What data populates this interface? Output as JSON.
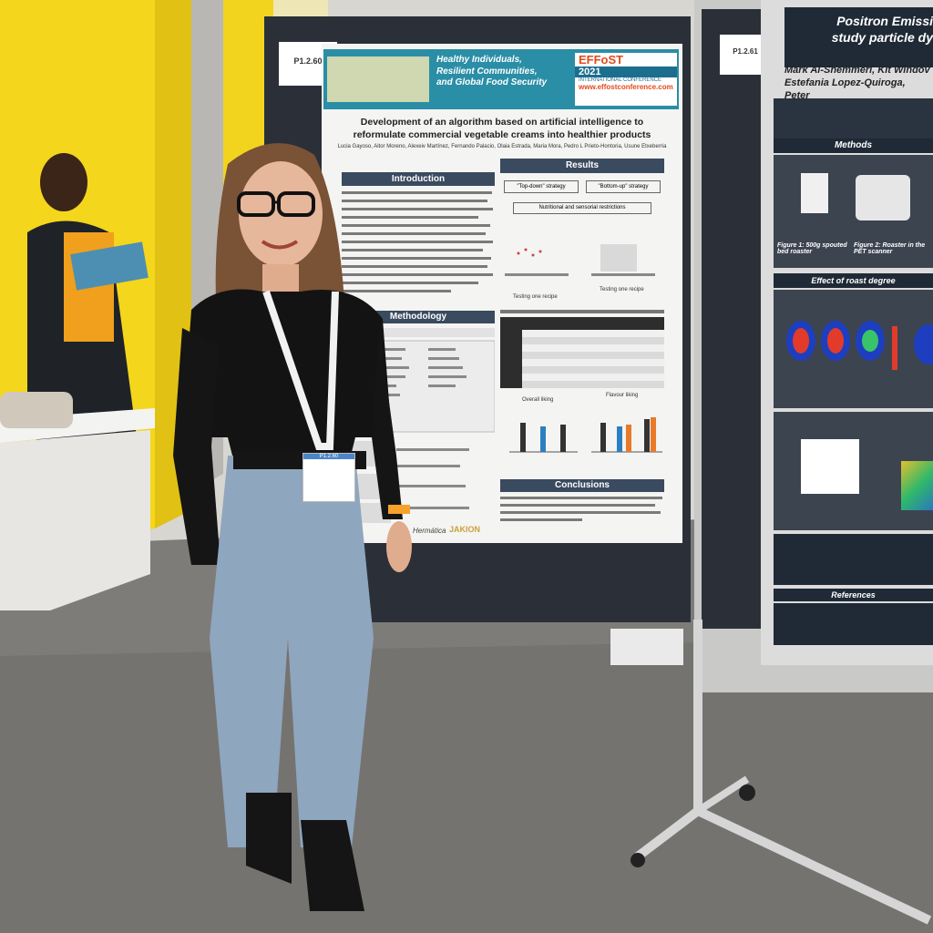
{
  "poster_main": {
    "board_number": "P1.2.60",
    "banner_lines": [
      "Healthy Individuals,",
      "Resilient Communities,",
      "and Global Food Security"
    ],
    "conf_brand": "EFFoST",
    "conf_year": "2021",
    "conf_sub": "INTERNATIONAL CONFERENCE",
    "conf_url": "www.effostconference.com",
    "title_line1": "Development of an algorithm based on artificial intelligence to",
    "title_line2": "reformulate commercial vegetable creams into healthier products",
    "authors": "Lucia Gayoso, Aitor Moreno, Alexeiv Martínez, Fernando Palacio, Olaia Estrada, Maria Mora, Pedro L Prieto-Hontoria, Usune Etxeberria",
    "sections": {
      "introduction": "Introduction",
      "results": "Results",
      "methodology": "Methodology",
      "conclusions": "Conclusions"
    },
    "strategies": [
      "\"Top-down\" strategy",
      "\"Bottom-up\" strategy"
    ],
    "restrictions": "Nutritional and sensorial restrictions",
    "testing_label": "Testing one recipe",
    "chart_titles": [
      "Overall liking",
      "Flavour liking"
    ],
    "footer_logos": [
      "Hermática",
      "JAKION"
    ]
  },
  "poster_right": {
    "board_number": "P1.2.61",
    "title_line1": "Positron Emissi",
    "title_line2": "study particle dy",
    "authors_line1": "Mark Al-Shemmeri, Kit Windov",
    "authors_line2": "Estefania Lopez-Quiroga, Peter",
    "sections": [
      "Methods",
      "Effect of roast degree",
      "References"
    ],
    "figure_captions": [
      "Figure 1: 500g spouted bed roaster",
      "Figure 2: Roaster in the PET scanner"
    ]
  },
  "badge": {
    "board_label": "P1.2.60"
  }
}
